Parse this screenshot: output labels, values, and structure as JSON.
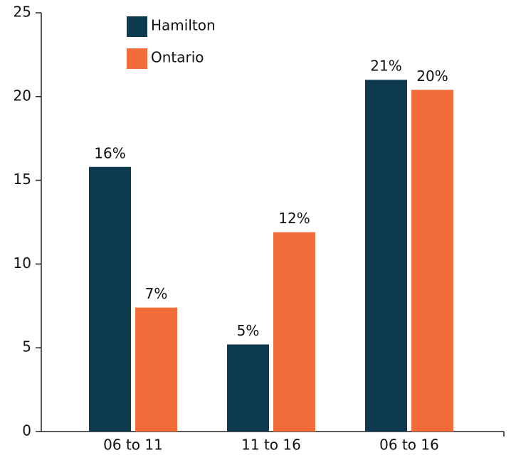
{
  "chart_data": {
    "type": "bar",
    "categories": [
      "06 to 11",
      "11 to 16",
      "06 to 16"
    ],
    "series": [
      {
        "name": "Hamilton",
        "color": "#0d3a4f",
        "values": [
          15.8,
          5.2,
          21
        ],
        "value_labels": [
          "16%",
          "5%",
          "21%"
        ]
      },
      {
        "name": "Ontario",
        "color": "#f26d3a",
        "values": [
          7.4,
          11.9,
          20.4
        ],
        "value_labels": [
          "7%",
          "12%",
          "20%"
        ]
      }
    ],
    "ylim": [
      0,
      25
    ],
    "yticks": [
      0,
      5,
      10,
      15,
      20,
      25
    ],
    "grid": false,
    "legend": "top"
  }
}
